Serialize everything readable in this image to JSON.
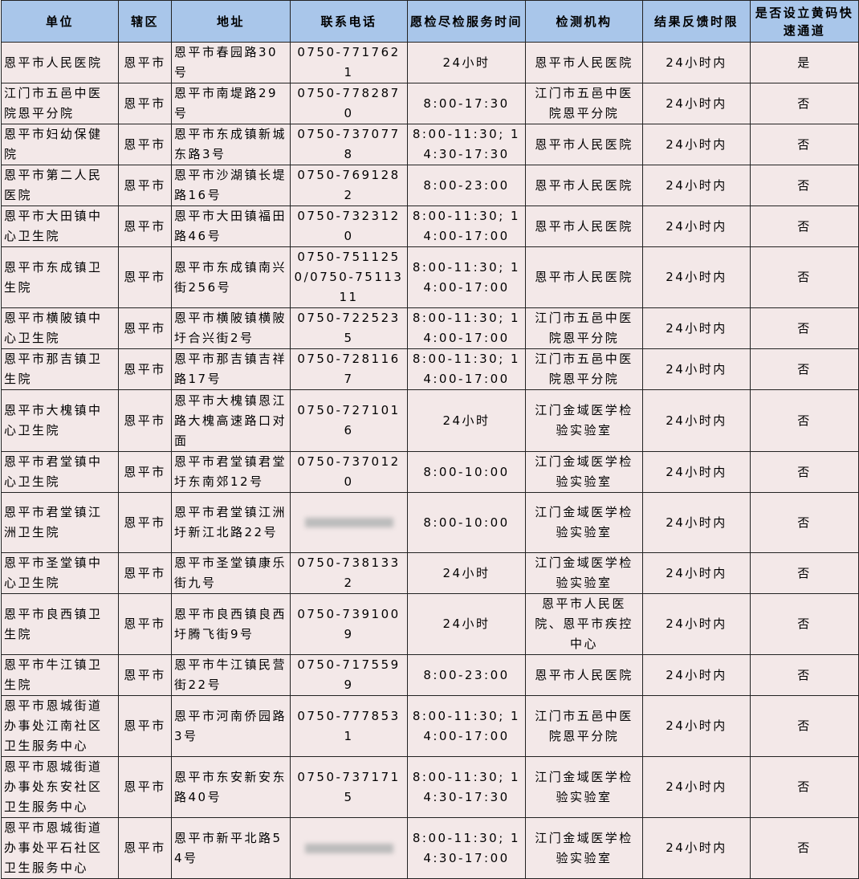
{
  "table": {
    "header": [
      "单位",
      "辖区",
      "地址",
      "联系电话",
      "愿检尽检服务时间",
      "检测机构",
      "结果反馈时限",
      "是否设立黄码快速通道"
    ],
    "rows": [
      [
        "恩平市人民医院",
        "恩平市",
        "恩平市春园路30号",
        "0750-7717621",
        "24小时",
        "恩平市人民医院",
        "24小时内",
        "是"
      ],
      [
        "江门市五邑中医院恩平分院",
        "恩平市",
        "恩平市南堤路29号",
        "0750-7782870",
        "8:00-17:30",
        "江门市五邑中医院恩平分院",
        "24小时内",
        "否"
      ],
      [
        "恩平市妇幼保健院",
        "恩平市",
        "恩平市东成镇新城东路3号",
        "0750-7370778",
        "8:00-11:30; 14:30-17:30",
        "恩平市人民医院",
        "24小时内",
        "否"
      ],
      [
        "恩平市第二人民医院",
        "恩平市",
        "恩平市沙湖镇长堤路16号",
        "0750-7691282",
        "8:00-23:00",
        "恩平市人民医院",
        "24小时内",
        "否"
      ],
      [
        "恩平市大田镇中心卫生院",
        "恩平市",
        "恩平市大田镇福田路46号",
        "0750-7323120",
        "8:00-11:30; 14:00-17:00",
        "恩平市人民医院",
        "24小时内",
        "否"
      ],
      [
        "恩平市东成镇卫生院",
        "恩平市",
        "恩平市东成镇南兴街256号",
        "0750-7511250/0750-7511311",
        "8:00-11:30; 14:00-17:00",
        "恩平市人民医院",
        "24小时内",
        "否"
      ],
      [
        "恩平市横陂镇中心卫生院",
        "恩平市",
        "恩平市横陂镇横陂圩合兴街2号",
        "0750-7225235",
        "8:00-11:30; 14:00-17:00",
        "江门市五邑中医院恩平分院",
        "24小时内",
        "否"
      ],
      [
        "恩平市那吉镇卫生院",
        "恩平市",
        "恩平市那吉镇吉祥路17号",
        "0750-7281167",
        "8:00-11:30; 14:00-17:00",
        "江门市五邑中医院恩平分院",
        "24小时内",
        "否"
      ],
      [
        "恩平市大槐镇中心卫生院",
        "恩平市",
        "恩平市大槐镇恩江路大槐高速路口对面",
        "0750-7271016",
        "24小时",
        "江门金域医学检验实验室",
        "24小时内",
        "否"
      ],
      [
        "恩平市君堂镇中心卫生院",
        "恩平市",
        "恩平市君堂镇君堂圩东南郊12号",
        "0750-7370120",
        "8:00-10:00",
        "江门金域医学检验实验室",
        "24小时内",
        "否"
      ],
      [
        "恩平市君堂镇江洲卫生院",
        "恩平市",
        "恩平市君堂镇江洲圩新江北路22号",
        null,
        "8:00-10:00",
        "江门金域医学检验实验室",
        "24小时内",
        "否"
      ],
      [
        "恩平市圣堂镇中心卫生院",
        "恩平市",
        "恩平市圣堂镇康乐街九号",
        "0750-7381332",
        "24小时",
        "江门金域医学检验实验室",
        "24小时内",
        "否"
      ],
      [
        "恩平市良西镇卫生院",
        "恩平市",
        "恩平市良西镇良西圩腾飞街9号",
        "0750-7391009",
        "24小时",
        "恩平市人民医院、恩平市疾控中心",
        "24小时内",
        "否"
      ],
      [
        "恩平市牛江镇卫生院",
        "恩平市",
        "恩平市牛江镇民营街22号",
        "0750-7175599",
        "8:00-23:00",
        "恩平市人民医院",
        "24小时内",
        "否"
      ],
      [
        "恩平市恩城街道办事处江南社区卫生服务中心",
        "恩平市",
        "恩平市河南侨园路3号",
        "0750-7778531",
        "8:00-11:30; 14:00-17:00",
        "江门市五邑中医院恩平分院",
        "24小时内",
        "否"
      ],
      [
        "恩平市恩城街道办事处东安社区卫生服务中心",
        "恩平市",
        "恩平市东安新安东路40号",
        "0750-7371715",
        "8:00-11:30; 14:30-17:30",
        "江门金域医学检验实验室",
        "24小时内",
        "否"
      ],
      [
        "恩平市恩城街道办事处平石社区卫生服务中心",
        "恩平市",
        "恩平市新平北路54号",
        null,
        "8:00-11:30; 14:30-17:00",
        "江门金域医学检验实验室",
        "24小时内",
        "否"
      ]
    ]
  }
}
